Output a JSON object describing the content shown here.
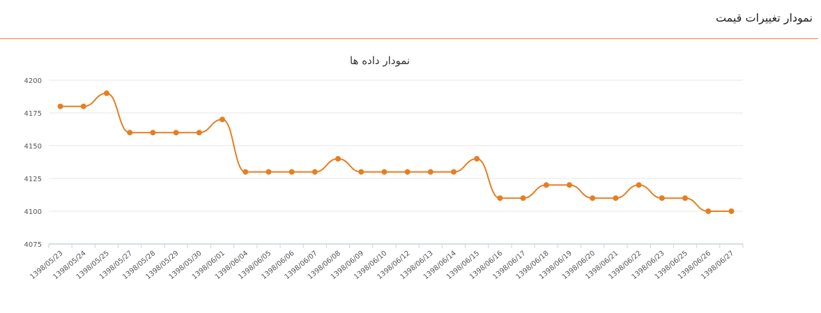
{
  "page": {
    "header_title": "نمودار تغییرات قیمت"
  },
  "colors": {
    "accent": "#e8893a",
    "series": "#e67e22",
    "grid": "#e6e6e6",
    "axis": "#c8d2e6"
  },
  "chart_data": {
    "type": "line",
    "title": "نمودار داده ها",
    "xlabel": "",
    "ylabel": "",
    "ylim": [
      4075,
      4200
    ],
    "yticks": [
      4075,
      4100,
      4125,
      4150,
      4175,
      4200
    ],
    "grid": true,
    "smooth": true,
    "categories": [
      "1398/05/23",
      "1398/05/24",
      "1398/05/25",
      "1398/05/27",
      "1398/05/28",
      "1398/05/29",
      "1398/05/30",
      "1398/06/01",
      "1398/06/04",
      "1398/06/05",
      "1398/06/06",
      "1398/06/07",
      "1398/06/08",
      "1398/06/09",
      "1398/06/10",
      "1398/06/12",
      "1398/06/13",
      "1398/06/14",
      "1398/06/15",
      "1398/06/16",
      "1398/06/17",
      "1398/06/18",
      "1398/06/19",
      "1398/06/20",
      "1398/06/21",
      "1398/06/22",
      "1398/06/23",
      "1398/06/25",
      "1398/06/26",
      "1398/06/27"
    ],
    "series": [
      {
        "values": [
          4180,
          4180,
          4190,
          4160,
          4160,
          4160,
          4160,
          4170,
          4130,
          4130,
          4130,
          4130,
          4140,
          4130,
          4130,
          4130,
          4130,
          4130,
          4140,
          4110,
          4110,
          4120,
          4120,
          4110,
          4110,
          4120,
          4110,
          4110,
          4100,
          4100
        ]
      }
    ]
  }
}
